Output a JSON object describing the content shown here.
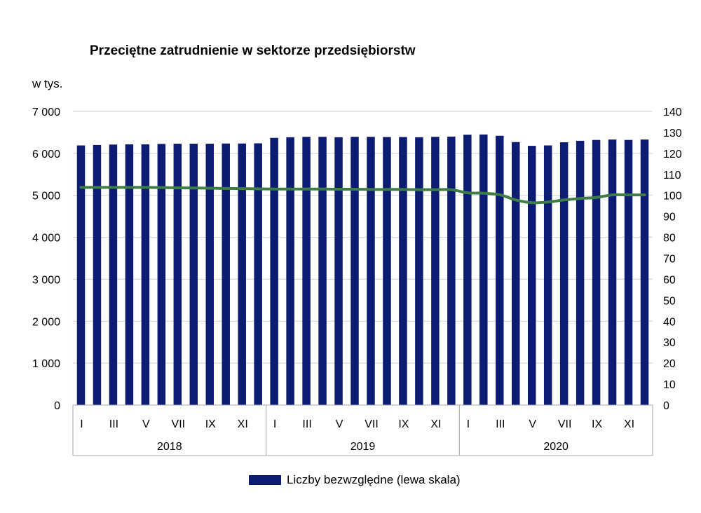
{
  "chart_data": {
    "type": "bar",
    "title": "Przeciętne zatrudnienie w sektorze przedsiębiorstw",
    "unit_label": "w tys.",
    "years": [
      "2018",
      "2019",
      "2020"
    ],
    "month_tick_labels": [
      "I",
      "",
      "III",
      "",
      "V",
      "",
      "VII",
      "",
      "IX",
      "",
      "XI",
      ""
    ],
    "categories": [
      "2018-I",
      "2018-II",
      "2018-III",
      "2018-IV",
      "2018-V",
      "2018-VI",
      "2018-VII",
      "2018-VIII",
      "2018-IX",
      "2018-X",
      "2018-XI",
      "2018-XII",
      "2019-I",
      "2019-II",
      "2019-III",
      "2019-IV",
      "2019-V",
      "2019-VI",
      "2019-VII",
      "2019-VIII",
      "2019-IX",
      "2019-X",
      "2019-XI",
      "2019-XII",
      "2020-I",
      "2020-II",
      "2020-III",
      "2020-IV",
      "2020-V",
      "2020-VI",
      "2020-VII",
      "2020-VIII",
      "2020-IX",
      "2020-X",
      "2020-XI",
      "2020-XII"
    ],
    "series": [
      {
        "name": "Liczby bezwzględne (lewa skala)",
        "axis": "left",
        "kind": "bar",
        "color": "#0d1c73",
        "values": [
          6190,
          6200,
          6210,
          6215,
          6215,
          6225,
          6230,
          6230,
          6230,
          6235,
          6235,
          6240,
          6370,
          6385,
          6395,
          6395,
          6385,
          6395,
          6395,
          6390,
          6390,
          6385,
          6395,
          6400,
          6445,
          6450,
          6420,
          6270,
          6180,
          6190,
          6265,
          6300,
          6320,
          6330,
          6320,
          6330
        ]
      },
      {
        "axis": "right",
        "kind": "line",
        "color": "#3f7d46",
        "values": [
          103.8,
          103.8,
          103.8,
          103.8,
          103.8,
          103.7,
          103.6,
          103.5,
          103.4,
          103.3,
          103.2,
          103.1,
          103.0,
          103.0,
          103.0,
          103.0,
          102.9,
          102.9,
          102.8,
          102.8,
          102.8,
          102.7,
          102.7,
          102.7,
          101.2,
          101.0,
          100.3,
          97.8,
          96.5,
          96.8,
          97.8,
          98.5,
          99.0,
          100.2,
          100.2,
          100.2
        ]
      }
    ],
    "left_axis": {
      "min": 0,
      "max": 7000,
      "step": 1000,
      "tick_labels": [
        "0",
        "1 000",
        "2 000",
        "3 000",
        "4 000",
        "5 000",
        "6 000",
        "7 000"
      ]
    },
    "right_axis": {
      "min": 0,
      "max": 140,
      "step": 10,
      "tick_labels": [
        "0",
        "10",
        "20",
        "30",
        "40",
        "50",
        "60",
        "70",
        "80",
        "90",
        "100",
        "110",
        "120",
        "130",
        "140"
      ]
    },
    "grid": true,
    "legend_placement": "bottom-center",
    "legend_label": "Liczby bezwzględne (lewa skala)"
  }
}
